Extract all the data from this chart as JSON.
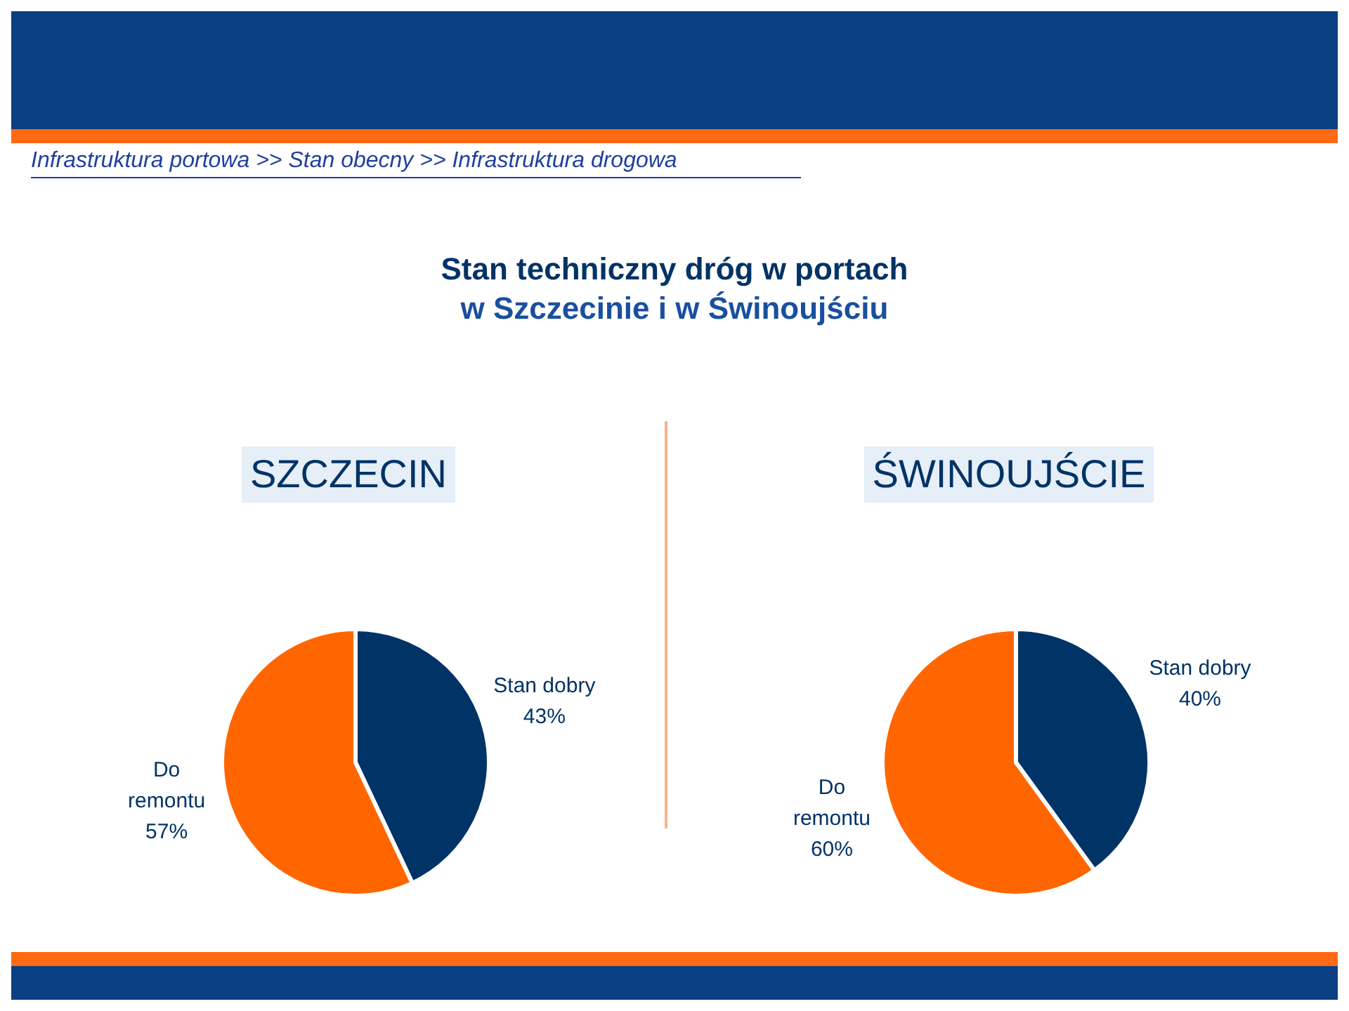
{
  "chart_data": [
    {
      "type": "other",
      "title": "Stan techniczny dróg w portach\nw Szczecinie i w Świnoujściu",
      "annotations": [
        "Infrastruktura portowa >> Stan obecny >> Infrastruktura drogowa"
      ]
    },
    {
      "type": "pie",
      "title": "SZCZECIN",
      "categories": [
        "Stan dobry",
        "Do remontu"
      ],
      "values": [
        43,
        57
      ],
      "value_labels": [
        "43%",
        "57%"
      ],
      "colors": [
        "#003366",
        "#ff6600"
      ],
      "legend": false
    },
    {
      "type": "pie",
      "title": "ŚWINOUJŚCIE",
      "categories": [
        "Stan dobry",
        "Do remontu"
      ],
      "values": [
        40,
        60
      ],
      "value_labels": [
        "40%",
        "60%"
      ],
      "colors": [
        "#003366",
        "#ff6600"
      ],
      "legend": false
    }
  ]
}
